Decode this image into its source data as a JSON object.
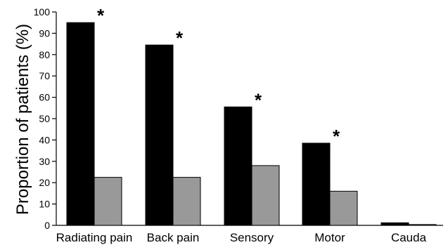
{
  "chart_data": {
    "type": "bar",
    "categories": [
      "Radiating pain",
      "Back pain",
      "Sensory",
      "Motor",
      "Cauda"
    ],
    "series": [
      {
        "values": [
          95,
          84.5,
          55.5,
          38.5,
          1.2
        ],
        "color": "#000000"
      },
      {
        "values": [
          22.5,
          22.5,
          28,
          16,
          0.4
        ],
        "color": "#999999"
      }
    ],
    "ylabel": "Proportion of patients (%)",
    "xlabel": "",
    "ylim": [
      0,
      100
    ],
    "yticks": [
      0,
      10,
      20,
      30,
      40,
      50,
      60,
      70,
      80,
      90,
      100
    ],
    "grid": false,
    "legend": "none",
    "annotations": [
      {
        "category": "Radiating pain",
        "text": "*"
      },
      {
        "category": "Back pain",
        "text": "*"
      },
      {
        "category": "Sensory",
        "text": "*"
      },
      {
        "category": "Motor",
        "text": "*"
      }
    ]
  }
}
